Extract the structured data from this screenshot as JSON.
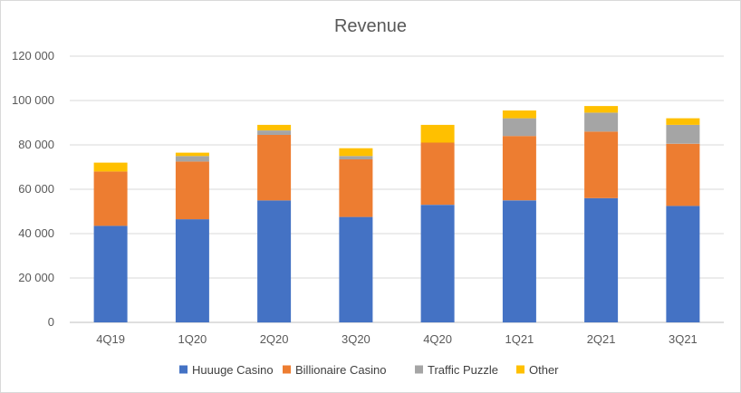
{
  "chart_data": {
    "type": "bar",
    "stacked": true,
    "title": "Revenue",
    "xlabel": "",
    "ylabel": "",
    "ylim": [
      0,
      120000
    ],
    "yticks": [
      0,
      20000,
      40000,
      60000,
      80000,
      100000,
      120000
    ],
    "ytick_labels": [
      "0",
      "20 000",
      "40 000",
      "60 000",
      "80 000",
      "100 000",
      "120 000"
    ],
    "grid": true,
    "legend_position": "bottom",
    "categories": [
      "4Q19",
      "1Q20",
      "2Q20",
      "3Q20",
      "4Q20",
      "1Q21",
      "2Q21",
      "3Q21"
    ],
    "series": [
      {
        "name": "Huuuge Casino",
        "color": "#4472C4",
        "values": [
          43500,
          46500,
          55000,
          47500,
          53000,
          55000,
          56000,
          52500
        ]
      },
      {
        "name": "Billionaire Casino",
        "color": "#ED7D31",
        "values": [
          24500,
          26000,
          29500,
          26000,
          28000,
          29000,
          30000,
          28000
        ]
      },
      {
        "name": "Traffic Puzzle",
        "color": "#A5A5A5",
        "values": [
          0,
          2500,
          2000,
          1500,
          0,
          8000,
          8500,
          8500
        ]
      },
      {
        "name": "Other",
        "color": "#FFC000",
        "values": [
          4000,
          1500,
          2500,
          3500,
          8000,
          3500,
          3000,
          3000
        ]
      }
    ]
  }
}
